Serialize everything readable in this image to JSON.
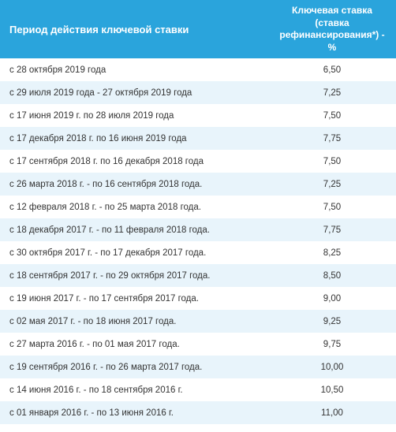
{
  "table": {
    "header": {
      "period": "Период действия ключевой ставки",
      "rate": "Ключевая ставка (ставка рефинансирования*) -%"
    },
    "rows": [
      {
        "period": "с 28 октября 2019 года",
        "rate": "6,50"
      },
      {
        "period": "с 29 июля 2019 года - 27 октября 2019 года",
        "rate": "7,25"
      },
      {
        "period": "с 17 июня 2019 г. по 28 июля 2019 года",
        "rate": "7,50"
      },
      {
        "period": "с 17 декабря 2018 г. по 16 июня 2019 года",
        "rate": "7,75"
      },
      {
        "period": "с 17 сентября 2018 г. по 16 декабря 2018 года",
        "rate": "7,50"
      },
      {
        "period": "с 26 марта 2018 г. - по 16 сентября 2018 года.",
        "rate": "7,25"
      },
      {
        "period": "с 12 февраля 2018 г. - по 25 марта 2018 года.",
        "rate": "7,50"
      },
      {
        "period": "с 18 декабря 2017 г. - по 11 февраля 2018 года.",
        "rate": "7,75"
      },
      {
        "period": "с 30 октября 2017 г. - по 17 декабря 2017 года.",
        "rate": "8,25"
      },
      {
        "period": "с 18 сентября 2017 г. - по 29 октября 2017 года.",
        "rate": "8,50"
      },
      {
        "period": "с 19 июня 2017 г. - по 17 сентября 2017 года.",
        "rate": "9,00"
      },
      {
        "period": "с 02 мая 2017 г. - по 18 июня 2017 года.",
        "rate": "9,25"
      },
      {
        "period": "с 27 марта 2016 г. - по 01 мая 2017 года.",
        "rate": "9,75"
      },
      {
        "period": "с 19 сентября 2016 г. - по 26 марта 2017 года.",
        "rate": "10,00"
      },
      {
        "period": "с 14 июня 2016 г. - по 18 сентября 2016 г.",
        "rate": "10,50"
      },
      {
        "period": "с 01 января 2016 г. - по 13 июня 2016 г.",
        "rate": "11,00"
      }
    ],
    "colors": {
      "header_bg": "#2aa4dc",
      "header_text": "#ffffff",
      "row_odd_bg": "#ffffff",
      "row_even_bg": "#e8f4fb",
      "text_color": "#333333"
    }
  }
}
